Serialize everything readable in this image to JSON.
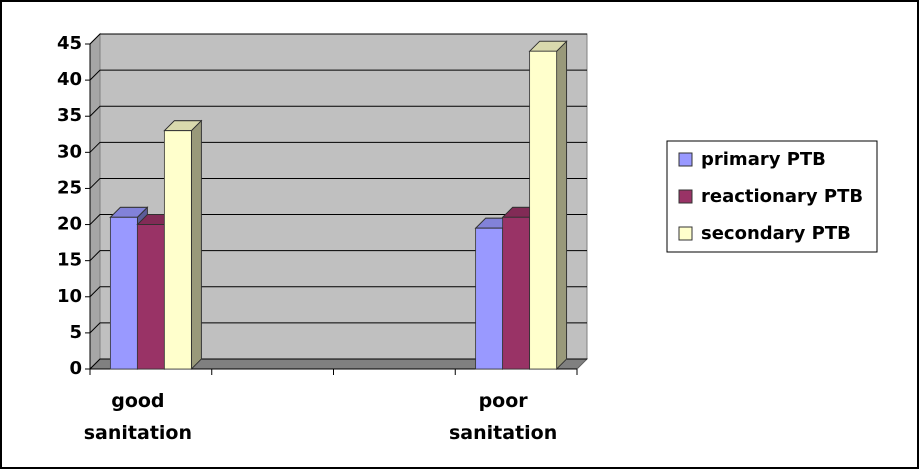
{
  "chart_data": {
    "type": "bar3d",
    "categories": [
      "good sanitation",
      null,
      null,
      "poor sanitation"
    ],
    "series": [
      {
        "name": "primary PTB",
        "color": "#9999ff",
        "values": [
          21,
          null,
          null,
          19.5
        ]
      },
      {
        "name": "reactionary PTB",
        "color": "#993366",
        "values": [
          20,
          null,
          null,
          21
        ]
      },
      {
        "name": "secondary PTB",
        "color": "#ffffcc",
        "values": [
          33,
          null,
          null,
          44
        ]
      }
    ],
    "ylim": [
      0,
      45
    ],
    "yticks": [
      0,
      5,
      10,
      15,
      20,
      25,
      30,
      35,
      40,
      45
    ],
    "grid": true,
    "legend": "right"
  }
}
